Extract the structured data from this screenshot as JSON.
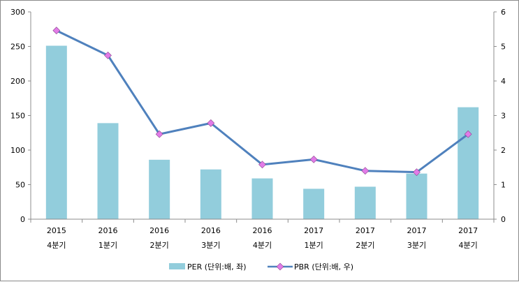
{
  "chart_data": {
    "type": "bar",
    "categories": [
      [
        "2015",
        "4분기"
      ],
      [
        "2016",
        "1분기"
      ],
      [
        "2016",
        "2분기"
      ],
      [
        "2016",
        "3분기"
      ],
      [
        "2016",
        "4분기"
      ],
      [
        "2017",
        "1분기"
      ],
      [
        "2017",
        "2분기"
      ],
      [
        "2017",
        "3분기"
      ],
      [
        "2017",
        "4분기"
      ]
    ],
    "series": [
      {
        "name": "PER (단위:배, 좌)",
        "type": "bar",
        "axis": "left",
        "color": "#92cddc",
        "values": [
          251,
          139,
          86,
          72,
          59,
          44,
          47,
          66,
          162
        ]
      },
      {
        "name": "PBR (단위:배, 우)",
        "type": "line",
        "axis": "right",
        "color": "#4f81bd",
        "marker_color": "#e27be8",
        "values": [
          5.46,
          4.74,
          2.46,
          2.78,
          1.58,
          1.73,
          1.4,
          1.36,
          2.46
        ]
      }
    ],
    "y_left": {
      "min": 0,
      "max": 300,
      "ticks": [
        0,
        50,
        100,
        150,
        200,
        250,
        300
      ]
    },
    "y_right": {
      "min": 0,
      "max": 6,
      "ticks": [
        0,
        1,
        2,
        3,
        4,
        5,
        6
      ]
    },
    "legend_position": "bottom",
    "grid": false
  }
}
